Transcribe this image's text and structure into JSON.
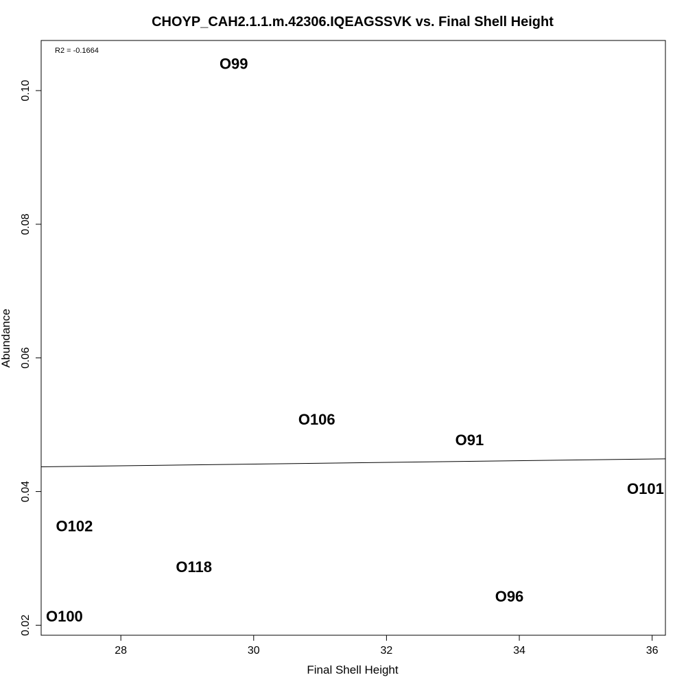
{
  "chart_data": {
    "type": "scatter",
    "title": "CHOYP_CAH2.1.1.m.42306.IQEAGSSVK vs. Final Shell Height",
    "xlabel": "Final Shell Height",
    "ylabel": "Abundance",
    "xlim": [
      26.8,
      36.2
    ],
    "ylim": [
      0.0185,
      0.1075
    ],
    "x_ticks": [
      28,
      30,
      32,
      34,
      36
    ],
    "y_ticks": [
      0.02,
      0.04,
      0.06,
      0.08,
      0.1
    ],
    "x_tick_labels": [
      "28",
      "30",
      "32",
      "34",
      "36"
    ],
    "y_tick_labels": [
      "0.02",
      "0.04",
      "0.06",
      "0.08",
      "0.10"
    ],
    "annotation": "R2 = -0.1664",
    "points": [
      {
        "label": "O99",
        "x": 29.7,
        "y": 0.104
      },
      {
        "label": "O106",
        "x": 30.95,
        "y": 0.0508
      },
      {
        "label": "O91",
        "x": 33.25,
        "y": 0.0477
      },
      {
        "label": "O101",
        "x": 35.9,
        "y": 0.0404
      },
      {
        "label": "O102",
        "x": 27.3,
        "y": 0.0348
      },
      {
        "label": "O118",
        "x": 29.1,
        "y": 0.0287
      },
      {
        "label": "O96",
        "x": 33.85,
        "y": 0.0243
      },
      {
        "label": "O100",
        "x": 27.15,
        "y": 0.0213
      }
    ],
    "fit_line": {
      "x": [
        26.8,
        36.2
      ],
      "y": [
        0.0437,
        0.0449
      ]
    },
    "grid": false,
    "legend": "none"
  }
}
